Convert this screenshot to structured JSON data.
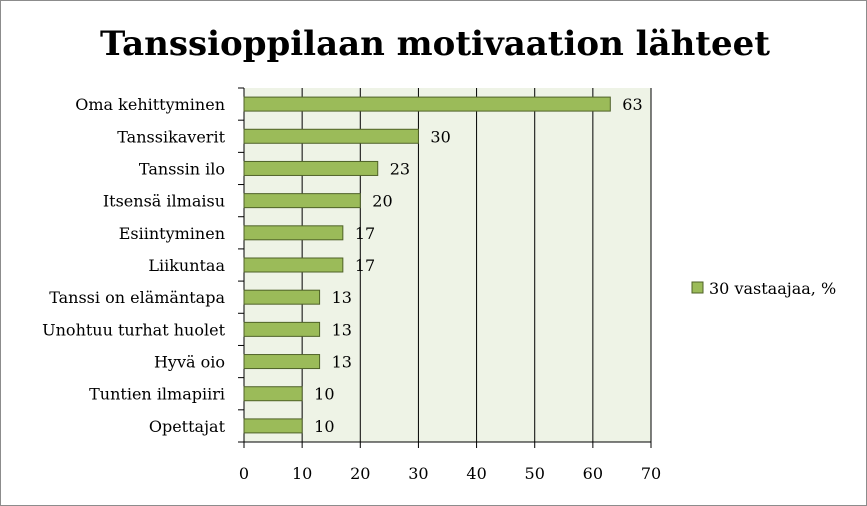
{
  "chart_data": {
    "type": "bar",
    "orientation": "horizontal",
    "title": "Tanssioppilaan motivaation lähteet",
    "categories": [
      "Oma kehittyminen",
      "Tanssikaverit",
      "Tanssin ilo",
      "Itsensä ilmaisu",
      "Esiintyminen",
      "Liikuntaa",
      "Tanssi on elämäntapa",
      "Unohtuu turhat huolet",
      "Hyvä oio",
      "Tuntien ilmapiiri",
      "Opettajat"
    ],
    "series": [
      {
        "name": "30 vastaajaa, %",
        "values": [
          63,
          30,
          23,
          20,
          17,
          17,
          13,
          13,
          13,
          10,
          10
        ]
      }
    ],
    "xlim": [
      0,
      70
    ],
    "xticks": [
      0,
      10,
      20,
      30,
      40,
      50,
      60,
      70
    ],
    "grid": true,
    "legend_position": "right",
    "colors": {
      "bar_fill": "#9bbb59",
      "bar_stroke": "#4f6228",
      "plot_background": "#eef3e6",
      "gridline": "#000000"
    }
  }
}
